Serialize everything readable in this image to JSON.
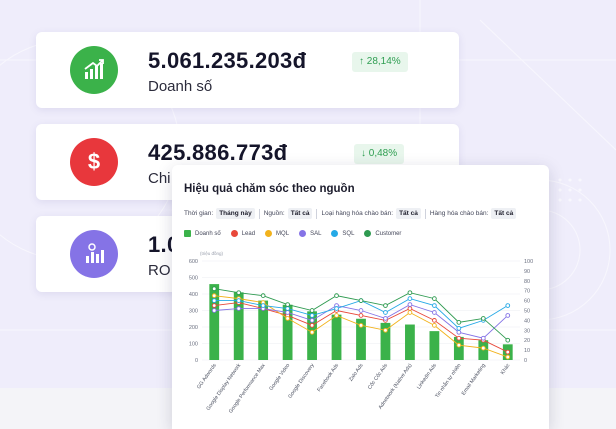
{
  "stats": [
    {
      "value": "5.061.235.203đ",
      "label": "Doanh số",
      "badge": "↑ 28,14%",
      "icon": "growth-chart-icon",
      "icon_color": "#3bb24a"
    },
    {
      "value": "425.886.773đ",
      "label": "Chi",
      "badge": "↓ 0,48%",
      "icon": "dollar-icon",
      "icon_color": "#e8373c"
    },
    {
      "value": "1.0",
      "label": "RO",
      "icon": "roi-chart-icon",
      "icon_color": "#8573e6"
    }
  ],
  "panel": {
    "title": "Hiệu quả chăm sóc theo nguồn",
    "filters": [
      {
        "label": "Thời gian:",
        "value": "Tháng này"
      },
      {
        "label": "Nguồn:",
        "value": "Tất cả"
      },
      {
        "label": "Loại hàng hóa chào bán:",
        "value": "Tất cả"
      },
      {
        "label": "Hàng hóa chào bán:",
        "value": "Tất cả"
      }
    ]
  },
  "colors": {
    "bar": "#3bb24a",
    "lead": "#e8483a",
    "mql": "#f2b21c",
    "sal": "#8573e6",
    "sql": "#25a9e6",
    "customer": "#2e9a50"
  },
  "chart_data": {
    "type": "bar",
    "y_unit": "(triệu đồng)",
    "ylim": [
      0,
      600
    ],
    "yticks": [
      0,
      100,
      200,
      300,
      400,
      500,
      600
    ],
    "y2lim": [
      0,
      100
    ],
    "y2ticks": [
      0,
      10,
      20,
      30,
      40,
      50,
      60,
      70,
      80,
      90,
      100
    ],
    "categories": [
      "GG Adwords",
      "Google Display Network",
      "Google Performance Max",
      "Google Video",
      "Google Discovery",
      "Facebook Ads",
      "Zalo Ads",
      "Cốc Cốc Ads",
      "Adnetwork (Native Ads)",
      "LinkedIn Ads",
      "Tin nhắn tự nhiên",
      "Email Marketing",
      "Khác"
    ],
    "series": [
      {
        "name": "Doanh số",
        "kind": "bar",
        "axis": "left",
        "values": [
          460,
          410,
          360,
          335,
          295,
          275,
          250,
          225,
          215,
          175,
          140,
          120,
          95
        ]
      },
      {
        "name": "Lead",
        "kind": "line",
        "axis": "right",
        "values": [
          55,
          58,
          52,
          45,
          35,
          50,
          45,
          40,
          52,
          40,
          22,
          20,
          8
        ]
      },
      {
        "name": "MQL",
        "kind": "line",
        "axis": "right",
        "values": [
          65,
          62,
          58,
          42,
          28,
          45,
          35,
          30,
          48,
          35,
          15,
          12,
          3
        ]
      },
      {
        "name": "SAL",
        "kind": "line",
        "axis": "right",
        "values": [
          50,
          52,
          52,
          48,
          40,
          55,
          50,
          42,
          56,
          48,
          28,
          22,
          45
        ]
      },
      {
        "name": "SQL",
        "kind": "line",
        "axis": "right",
        "values": [
          60,
          60,
          55,
          52,
          45,
          52,
          60,
          48,
          62,
          55,
          32,
          40,
          55
        ]
      },
      {
        "name": "Customer",
        "kind": "line",
        "axis": "right",
        "values": [
          72,
          68,
          65,
          56,
          50,
          65,
          60,
          55,
          68,
          62,
          38,
          42,
          20
        ]
      }
    ]
  }
}
